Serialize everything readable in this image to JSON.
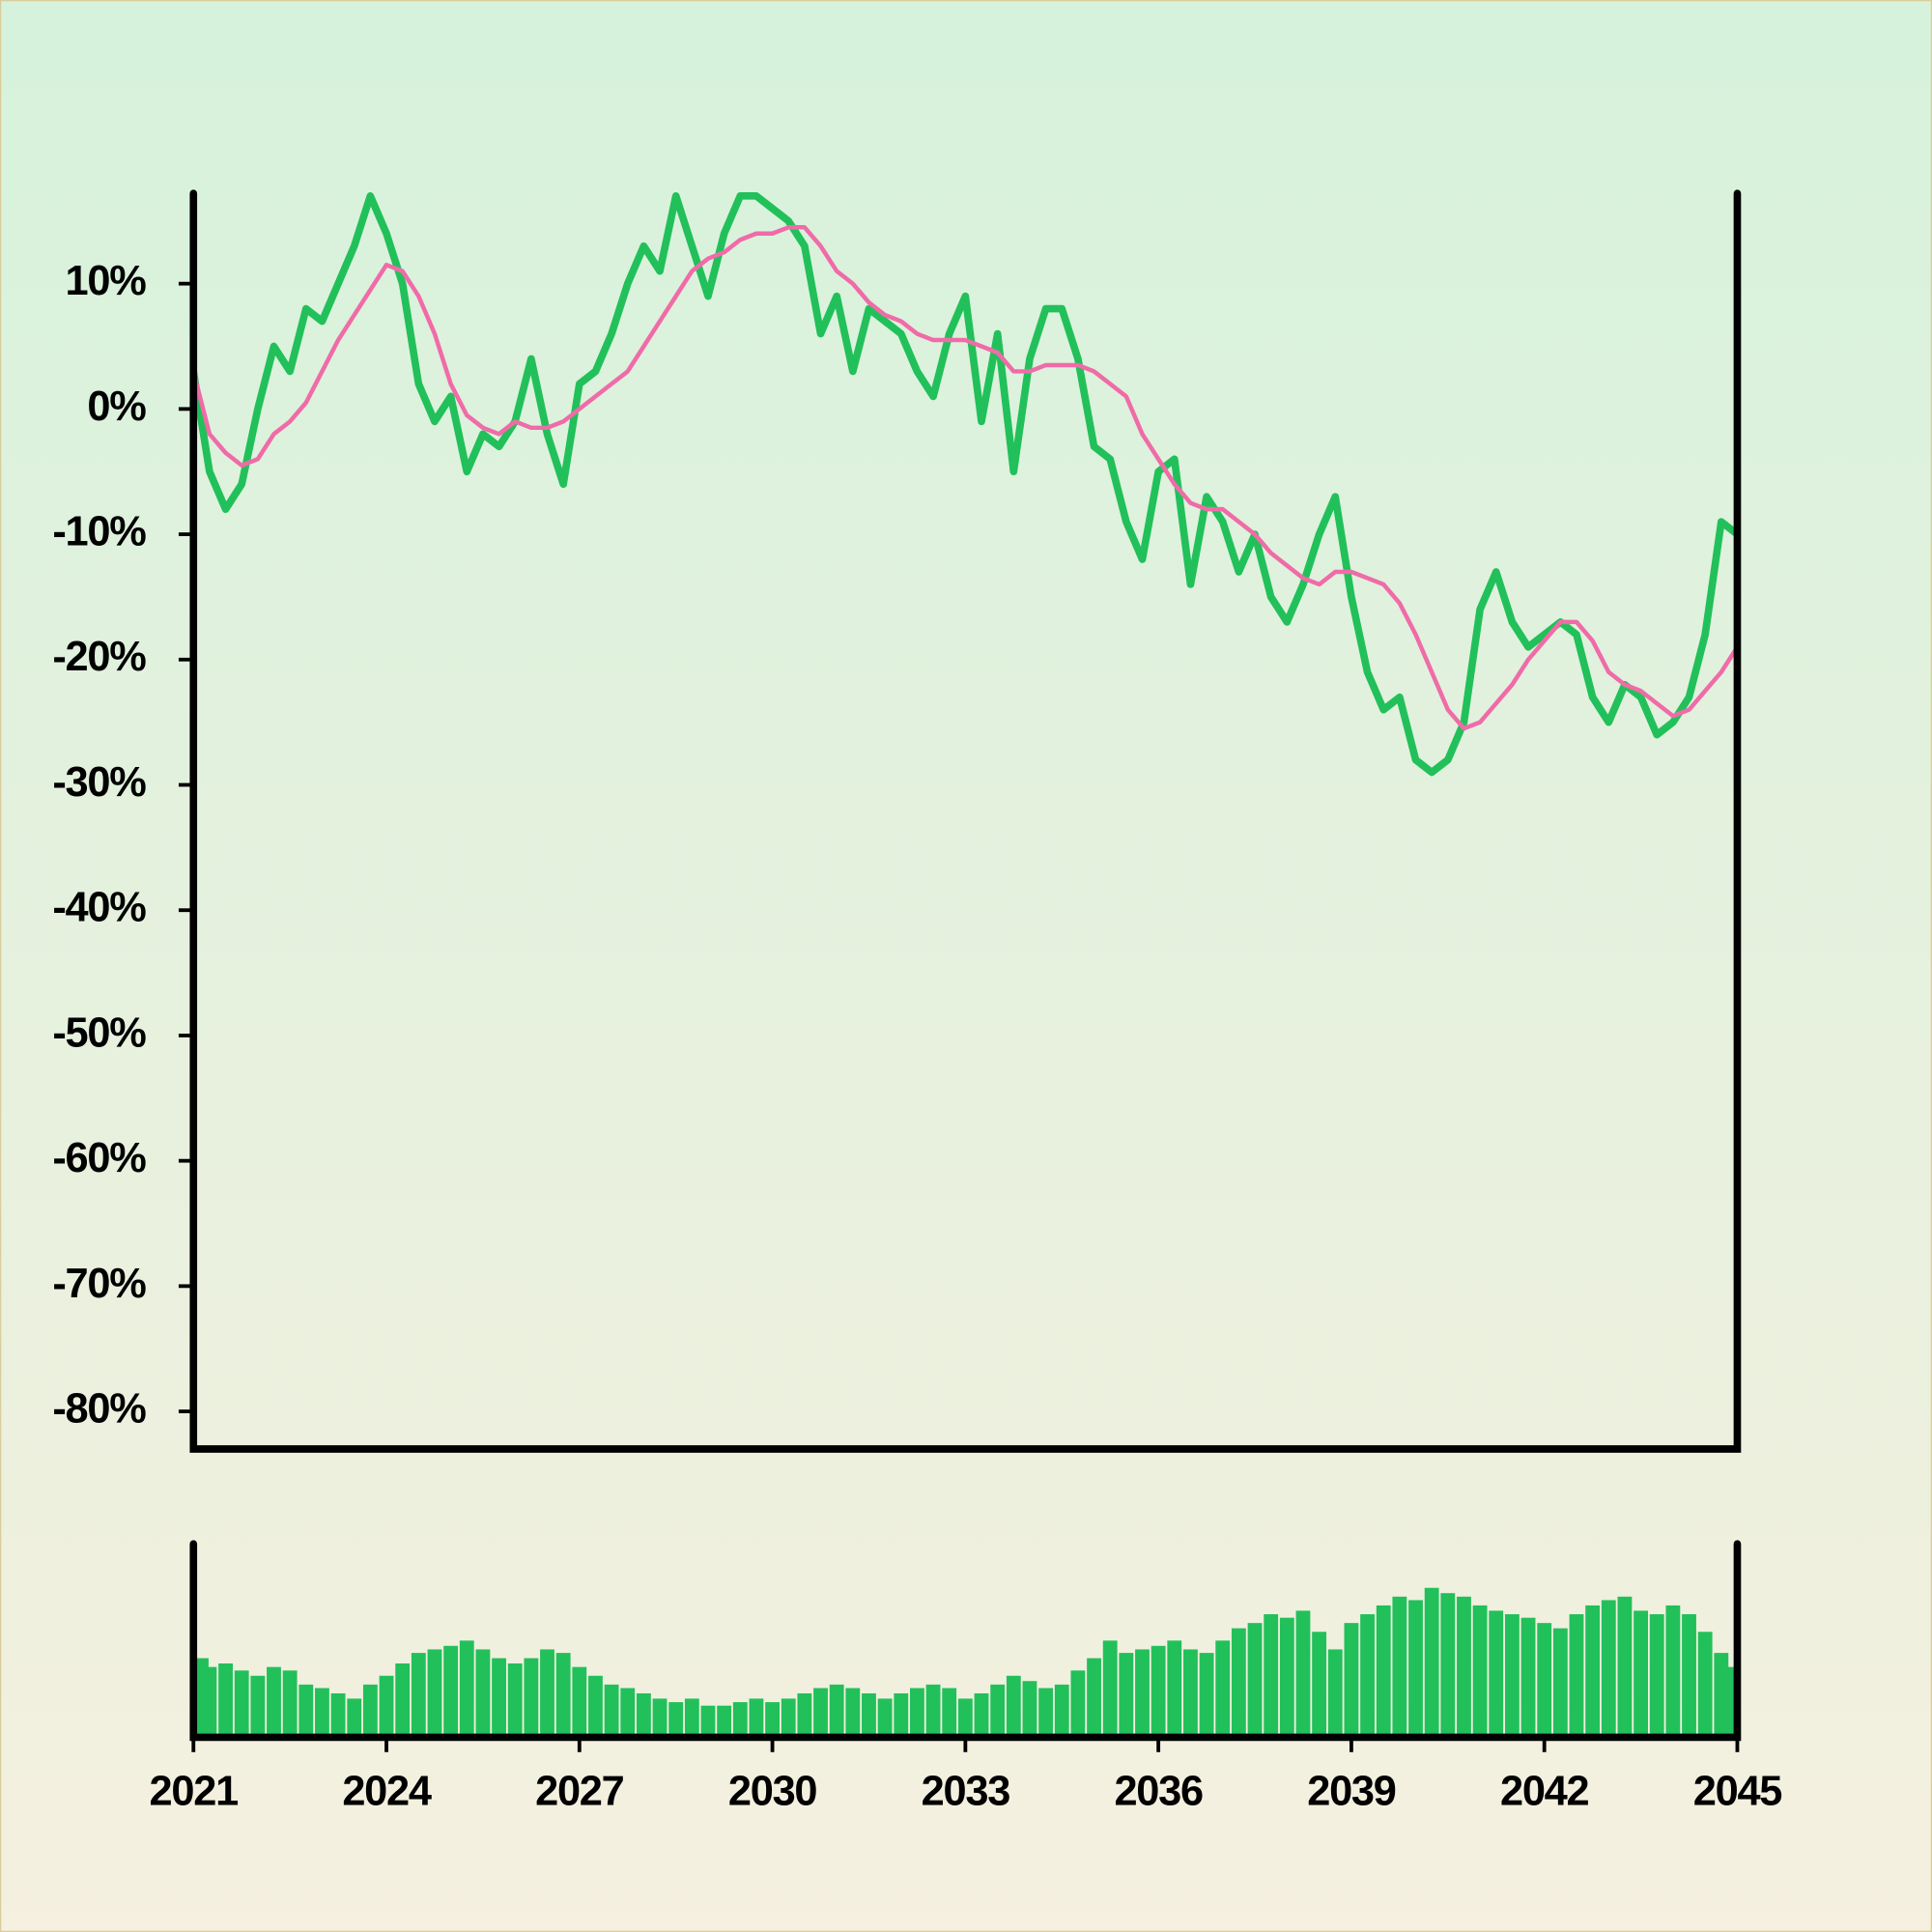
{
  "chart_data": [
    {
      "type": "line",
      "x": [
        2021,
        2021.25,
        2021.5,
        2021.75,
        2022,
        2022.25,
        2022.5,
        2022.75,
        2023,
        2023.25,
        2023.5,
        2023.75,
        2024,
        2024.25,
        2024.5,
        2024.75,
        2025,
        2025.25,
        2025.5,
        2025.75,
        2026,
        2026.25,
        2026.5,
        2026.75,
        2027,
        2027.25,
        2027.5,
        2027.75,
        2028,
        2028.25,
        2028.5,
        2028.75,
        2029,
        2029.25,
        2029.5,
        2029.75,
        2030,
        2030.25,
        2030.5,
        2030.75,
        2031,
        2031.25,
        2031.5,
        2031.75,
        2032,
        2032.25,
        2032.5,
        2032.75,
        2033,
        2033.25,
        2033.5,
        2033.75,
        2034,
        2034.25,
        2034.5,
        2034.75,
        2035,
        2035.25,
        2035.5,
        2035.75,
        2036,
        2036.25,
        2036.5,
        2036.75,
        2037,
        2037.25,
        2037.5,
        2037.75,
        2038,
        2038.25,
        2038.5,
        2038.75,
        2039,
        2039.25,
        2039.5,
        2039.75,
        2040,
        2040.25,
        2040.5,
        2040.75,
        2041,
        2041.25,
        2041.5,
        2041.75,
        2042,
        2042.25,
        2042.5,
        2042.75,
        2043,
        2043.25,
        2043.5,
        2043.75,
        2044,
        2044.25,
        2044.5,
        2044.75,
        2045
      ],
      "series": [
        {
          "color": "#22c05a",
          "values": [
            3,
            -5,
            -8,
            -6,
            0,
            5,
            3,
            8,
            7,
            10,
            13,
            17,
            14,
            10,
            2,
            -1,
            1,
            -5,
            -2,
            -3,
            -1,
            4,
            -2,
            -6,
            2,
            3,
            6,
            10,
            13,
            11,
            17,
            13,
            9,
            14,
            17,
            17,
            16,
            15,
            13,
            6,
            9,
            3,
            8,
            7,
            6,
            3,
            1,
            6,
            9,
            -1,
            6,
            -5,
            4,
            8,
            8,
            4,
            -3,
            -4,
            -9,
            -12,
            -5,
            -4,
            -14,
            -7,
            -9,
            -13,
            -10,
            -15,
            -17,
            -14,
            -10,
            -7,
            -15,
            -21,
            -24,
            -23,
            -28,
            -29,
            -28,
            -25,
            -16,
            -13,
            -17,
            -19,
            -18,
            -17,
            -18,
            -23,
            -25,
            -22,
            -23,
            -26,
            -25,
            -23,
            -18,
            -9,
            -10
          ]
        },
        {
          "color": "#f06ba8",
          "values": [
            3,
            -2,
            -3.5,
            -4.5,
            -4,
            -2,
            -1,
            0.5,
            3,
            5.5,
            7.5,
            9.5,
            11.5,
            11,
            9,
            6,
            2,
            -0.5,
            -1.5,
            -2,
            -1,
            -1.5,
            -1.5,
            -1,
            0,
            1,
            2,
            3,
            5,
            7,
            9,
            11,
            12,
            12.5,
            13.5,
            14,
            14,
            14.5,
            14.5,
            13,
            11,
            10,
            8.5,
            7.5,
            7,
            6,
            5.5,
            5.5,
            5.5,
            5,
            4.5,
            3,
            3,
            3.5,
            3.5,
            3.5,
            3,
            2,
            1,
            -2,
            -4,
            -6,
            -7.5,
            -8,
            -8,
            -9,
            -10,
            -11.5,
            -12.5,
            -13.5,
            -14,
            -13,
            -13,
            -13.5,
            -14,
            -15.5,
            -18,
            -21,
            -24,
            -25.5,
            -25,
            -23.5,
            -22,
            -20,
            -18.5,
            -17,
            -17,
            -18.5,
            -21,
            -22,
            -22.5,
            -23.5,
            -24.5,
            -24,
            -22.5,
            -21,
            -19
          ]
        }
      ],
      "xlim": [
        2021,
        2045
      ],
      "ylim": [
        -83,
        17.2
      ],
      "yticks": [
        {
          "value": 10,
          "label": "10%"
        },
        {
          "value": 0,
          "label": "0%"
        },
        {
          "value": -10,
          "label": "-10%"
        },
        {
          "value": -20,
          "label": "-20%"
        },
        {
          "value": -30,
          "label": "-30%"
        },
        {
          "value": -40,
          "label": "-40%"
        },
        {
          "value": -50,
          "label": "-50%"
        },
        {
          "value": -60,
          "label": "-60%"
        },
        {
          "value": -70,
          "label": "-70%"
        },
        {
          "value": -80,
          "label": "-80%"
        }
      ]
    },
    {
      "type": "bar",
      "x": [
        2021,
        2021.25,
        2021.5,
        2021.75,
        2022,
        2022.25,
        2022.5,
        2022.75,
        2023,
        2023.25,
        2023.5,
        2023.75,
        2024,
        2024.25,
        2024.5,
        2024.75,
        2025,
        2025.25,
        2025.5,
        2025.75,
        2026,
        2026.25,
        2026.5,
        2026.75,
        2027,
        2027.25,
        2027.5,
        2027.75,
        2028,
        2028.25,
        2028.5,
        2028.75,
        2029,
        2029.25,
        2029.5,
        2029.75,
        2030,
        2030.25,
        2030.5,
        2030.75,
        2031,
        2031.25,
        2031.5,
        2031.75,
        2032,
        2032.25,
        2032.5,
        2032.75,
        2033,
        2033.25,
        2033.5,
        2033.75,
        2034,
        2034.25,
        2034.5,
        2034.75,
        2035,
        2035.25,
        2035.5,
        2035.75,
        2036,
        2036.25,
        2036.5,
        2036.75,
        2037,
        2037.25,
        2037.5,
        2037.75,
        2038,
        2038.25,
        2038.5,
        2038.75,
        2039,
        2039.25,
        2039.5,
        2039.75,
        2040,
        2040.25,
        2040.5,
        2040.75,
        2041,
        2041.25,
        2041.5,
        2041.75,
        2042,
        2042.25,
        2042.5,
        2042.75,
        2043,
        2043.25,
        2043.5,
        2043.75,
        2044,
        2044.25,
        2044.5,
        2044.75,
        2045
      ],
      "values": [
        45,
        40,
        42,
        38,
        35,
        40,
        38,
        30,
        28,
        25,
        22,
        30,
        35,
        42,
        48,
        50,
        52,
        55,
        50,
        45,
        42,
        45,
        50,
        48,
        40,
        35,
        30,
        28,
        25,
        22,
        20,
        22,
        18,
        18,
        20,
        22,
        20,
        22,
        25,
        28,
        30,
        28,
        25,
        22,
        25,
        28,
        30,
        28,
        22,
        25,
        30,
        35,
        32,
        28,
        30,
        38,
        45,
        55,
        48,
        50,
        52,
        55,
        50,
        48,
        55,
        62,
        65,
        70,
        68,
        72,
        60,
        50,
        65,
        70,
        75,
        80,
        78,
        85,
        82,
        80,
        75,
        72,
        70,
        68,
        65,
        62,
        70,
        75,
        78,
        80,
        72,
        70,
        75,
        70,
        60,
        48,
        40
      ],
      "color": "#22c05a",
      "xlim": [
        2021,
        2045
      ],
      "ylim": [
        0,
        110
      ],
      "xticks": [
        2021,
        2024,
        2027,
        2030,
        2033,
        2036,
        2039,
        2042,
        2045
      ]
    }
  ]
}
